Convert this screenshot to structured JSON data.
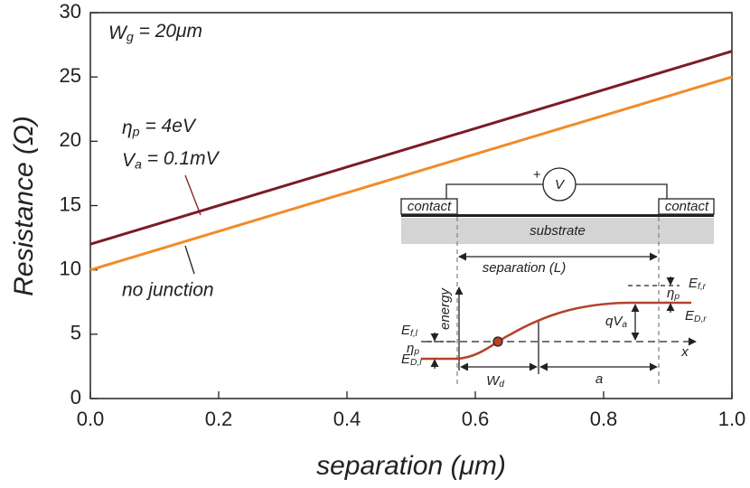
{
  "chart_data": {
    "type": "line",
    "x_label": "separation (μm)",
    "y_label": "Resistance (Ω)",
    "x": [
      0,
      1
    ],
    "series": [
      {
        "color": "#7b1c24",
        "values": [
          12,
          27
        ]
      },
      {
        "name": "no junction",
        "color": "#f08c28",
        "values": [
          10,
          25
        ]
      }
    ],
    "xlim": [
      0,
      1
    ],
    "ylim": [
      0,
      30
    ],
    "xticks": [
      {
        "value": 0,
        "label": "0.0"
      },
      0.2,
      0.4,
      0.6,
      0.8,
      {
        "value": 1,
        "label": "1.0"
      }
    ],
    "yticks": [
      0,
      5,
      10,
      15,
      20,
      25,
      30
    ],
    "grid": false,
    "annotations": [
      {
        "main": "W",
        "sub": "g",
        "rest": " = 20μm"
      },
      {
        "main": "η",
        "sub": "p",
        "rest": " = 4eV"
      },
      {
        "main": "V",
        "sub": "a",
        "rest": " = 0.1mV"
      }
    ],
    "inset": {
      "contact_left": "contact",
      "contact_right": "contact",
      "substrate": "substrate",
      "meter": "V",
      "plus": "+",
      "separation": "separation (L)",
      "energy": "energy",
      "x_axis": "x",
      "ef_l": {
        "main": "E",
        "sub": "f,l"
      },
      "eta_l": {
        "main": "η",
        "sub": "p"
      },
      "ed_l": {
        "main": "E",
        "sub": "D,l"
      },
      "wd": {
        "main": "W",
        "sub": "d"
      },
      "a": "a",
      "qva": {
        "main": "qV",
        "sub": "a"
      },
      "ef_r": {
        "main": "E",
        "sub": "f,r"
      },
      "eta_r": {
        "main": "η",
        "sub": "p"
      },
      "ed_r": {
        "main": "E",
        "sub": "D,r"
      }
    }
  }
}
